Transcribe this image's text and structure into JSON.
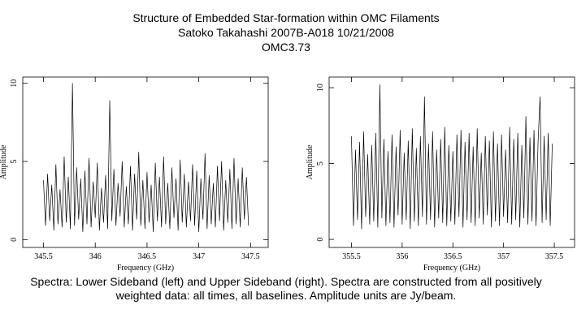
{
  "header": [
    "Structure of Embedded Star-formation within OMC Filaments",
    "Satoko Takahashi   2007B-A018   10/21/2008",
    "OMC3.73"
  ],
  "caption": [
    "Spectra: Lower Sideband (left) and Upper Sideband (right).  Spectra are constructed from all positively",
    "weighted data: all times, all baselines.  Amplitude units are Jy/beam."
  ],
  "chart_data": [
    {
      "type": "line",
      "x_label": "Frequency (GHz)",
      "y_label": "Amplitude",
      "color": "#000000",
      "xlim": [
        345.3,
        347.67
      ],
      "ylim": [
        -0.5,
        10.4
      ],
      "xticks": [
        345.5,
        346,
        346.5,
        347,
        347.5
      ],
      "yticks": [
        0,
        5,
        10
      ],
      "x": [
        345.5,
        345.52,
        345.54,
        345.56,
        345.58,
        345.6,
        345.62,
        345.64,
        345.66,
        345.68,
        345.7,
        345.72,
        345.74,
        345.76,
        345.78,
        345.8,
        345.82,
        345.84,
        345.86,
        345.88,
        345.9,
        345.92,
        345.94,
        345.96,
        345.98,
        346,
        346.02,
        346.04,
        346.06,
        346.08,
        346.1,
        346.12,
        346.14,
        346.16,
        346.18,
        346.2,
        346.22,
        346.24,
        346.26,
        346.28,
        346.3,
        346.32,
        346.34,
        346.36,
        346.38,
        346.4,
        346.42,
        346.44,
        346.46,
        346.48,
        346.5,
        346.52,
        346.54,
        346.56,
        346.58,
        346.6,
        346.62,
        346.64,
        346.66,
        346.68,
        346.7,
        346.72,
        346.74,
        346.76,
        346.78,
        346.8,
        346.82,
        346.84,
        346.86,
        346.88,
        346.9,
        346.92,
        346.94,
        346.96,
        346.98,
        347,
        347.02,
        347.04,
        347.06,
        347.08,
        347.1,
        347.12,
        347.14,
        347.16,
        347.18,
        347.2,
        347.22,
        347.24,
        347.26,
        347.28,
        347.3,
        347.32,
        347.34,
        347.36,
        347.38,
        347.4,
        347.42,
        347.44,
        347.46,
        347.48
      ],
      "values": [
        3.8,
        0.9,
        4.2,
        1.2,
        3.5,
        0.6,
        4.8,
        1.0,
        3.2,
        0.8,
        5.3,
        1.1,
        4.0,
        0.7,
        10.0,
        0.9,
        4.6,
        1.3,
        3.9,
        0.5,
        4.4,
        1.0,
        5.2,
        0.8,
        3.7,
        1.4,
        4.9,
        0.6,
        3.3,
        1.1,
        4.1,
        0.7,
        8.9,
        1.2,
        4.5,
        0.9,
        3.6,
        1.5,
        5.0,
        0.8,
        3.4,
        1.0,
        4.7,
        0.6,
        4.2,
        1.3,
        5.6,
        0.9,
        3.8,
        0.7,
        4.3,
        1.1,
        3.5,
        0.5,
        4.9,
        1.2,
        4.0,
        0.8,
        5.3,
        1.0,
        3.6,
        0.7,
        4.6,
        1.4,
        3.9,
        0.6,
        5.1,
        1.1,
        4.2,
        0.8,
        3.7,
        1.2,
        4.8,
        0.9,
        4.4,
        0.5,
        3.9,
        1.3,
        5.5,
        0.7,
        4.1,
        1.0,
        3.6,
        0.8,
        4.7,
        1.2,
        5.0,
        0.6,
        3.8,
        1.1,
        4.5,
        0.7,
        5.2,
        1.0,
        3.9,
        0.8,
        4.6,
        1.3,
        4.0,
        0.9
      ]
    },
    {
      "type": "line",
      "x_label": "Frequency (GHz)",
      "y_label": "Amplitude",
      "color": "#000000",
      "xlim": [
        355.28,
        357.7
      ],
      "ylim": [
        -0.53,
        10.7
      ],
      "xticks": [
        355.5,
        356,
        356.5,
        357,
        357.5
      ],
      "yticks": [
        0,
        5,
        10
      ],
      "x": [
        355.5,
        355.52,
        355.54,
        355.56,
        355.58,
        355.6,
        355.62,
        355.64,
        355.66,
        355.68,
        355.7,
        355.72,
        355.74,
        355.76,
        355.78,
        355.8,
        355.82,
        355.84,
        355.86,
        355.88,
        355.9,
        355.92,
        355.94,
        355.96,
        355.98,
        356,
        356.02,
        356.04,
        356.06,
        356.08,
        356.1,
        356.12,
        356.14,
        356.16,
        356.18,
        356.2,
        356.22,
        356.24,
        356.26,
        356.28,
        356.3,
        356.32,
        356.34,
        356.36,
        356.38,
        356.4,
        356.42,
        356.44,
        356.46,
        356.48,
        356.5,
        356.52,
        356.54,
        356.56,
        356.58,
        356.6,
        356.62,
        356.64,
        356.66,
        356.68,
        356.7,
        356.72,
        356.74,
        356.76,
        356.78,
        356.8,
        356.82,
        356.84,
        356.86,
        356.88,
        356.9,
        356.92,
        356.94,
        356.96,
        356.98,
        357,
        357.02,
        357.04,
        357.06,
        357.08,
        357.1,
        357.12,
        357.14,
        357.16,
        357.18,
        357.2,
        357.22,
        357.24,
        357.26,
        357.28,
        357.3,
        357.32,
        357.34,
        357.36,
        357.38,
        357.4,
        357.42,
        357.44,
        357.46,
        357.48
      ],
      "values": [
        6.8,
        0.9,
        5.9,
        1.3,
        6.4,
        0.7,
        7.1,
        1.5,
        5.6,
        1.0,
        6.2,
        1.2,
        7.0,
        0.8,
        10.2,
        1.4,
        6.6,
        0.9,
        5.8,
        1.1,
        6.9,
        0.8,
        6.1,
        1.6,
        7.2,
        1.0,
        5.7,
        1.3,
        6.5,
        0.7,
        7.3,
        1.2,
        6.0,
        0.9,
        6.8,
        1.5,
        9.4,
        1.0,
        6.3,
        1.3,
        7.1,
        0.8,
        5.9,
        1.4,
        6.6,
        1.1,
        7.4,
        0.9,
        6.2,
        1.2,
        5.8,
        1.0,
        6.9,
        1.5,
        7.2,
        0.8,
        6.4,
        1.3,
        7.0,
        1.1,
        6.1,
        0.9,
        7.3,
        1.4,
        5.7,
        1.0,
        6.8,
        1.6,
        6.5,
        0.8,
        7.1,
        1.2,
        6.3,
        0.9,
        6.9,
        1.5,
        5.9,
        1.1,
        7.4,
        1.0,
        6.6,
        1.3,
        7.0,
        0.8,
        6.2,
        1.4,
        8.1,
        1.0,
        6.7,
        1.2,
        7.2,
        0.9,
        6.4,
        9.4,
        1.1,
        6.8,
        1.3,
        7.0,
        0.9,
        6.3
      ]
    }
  ]
}
